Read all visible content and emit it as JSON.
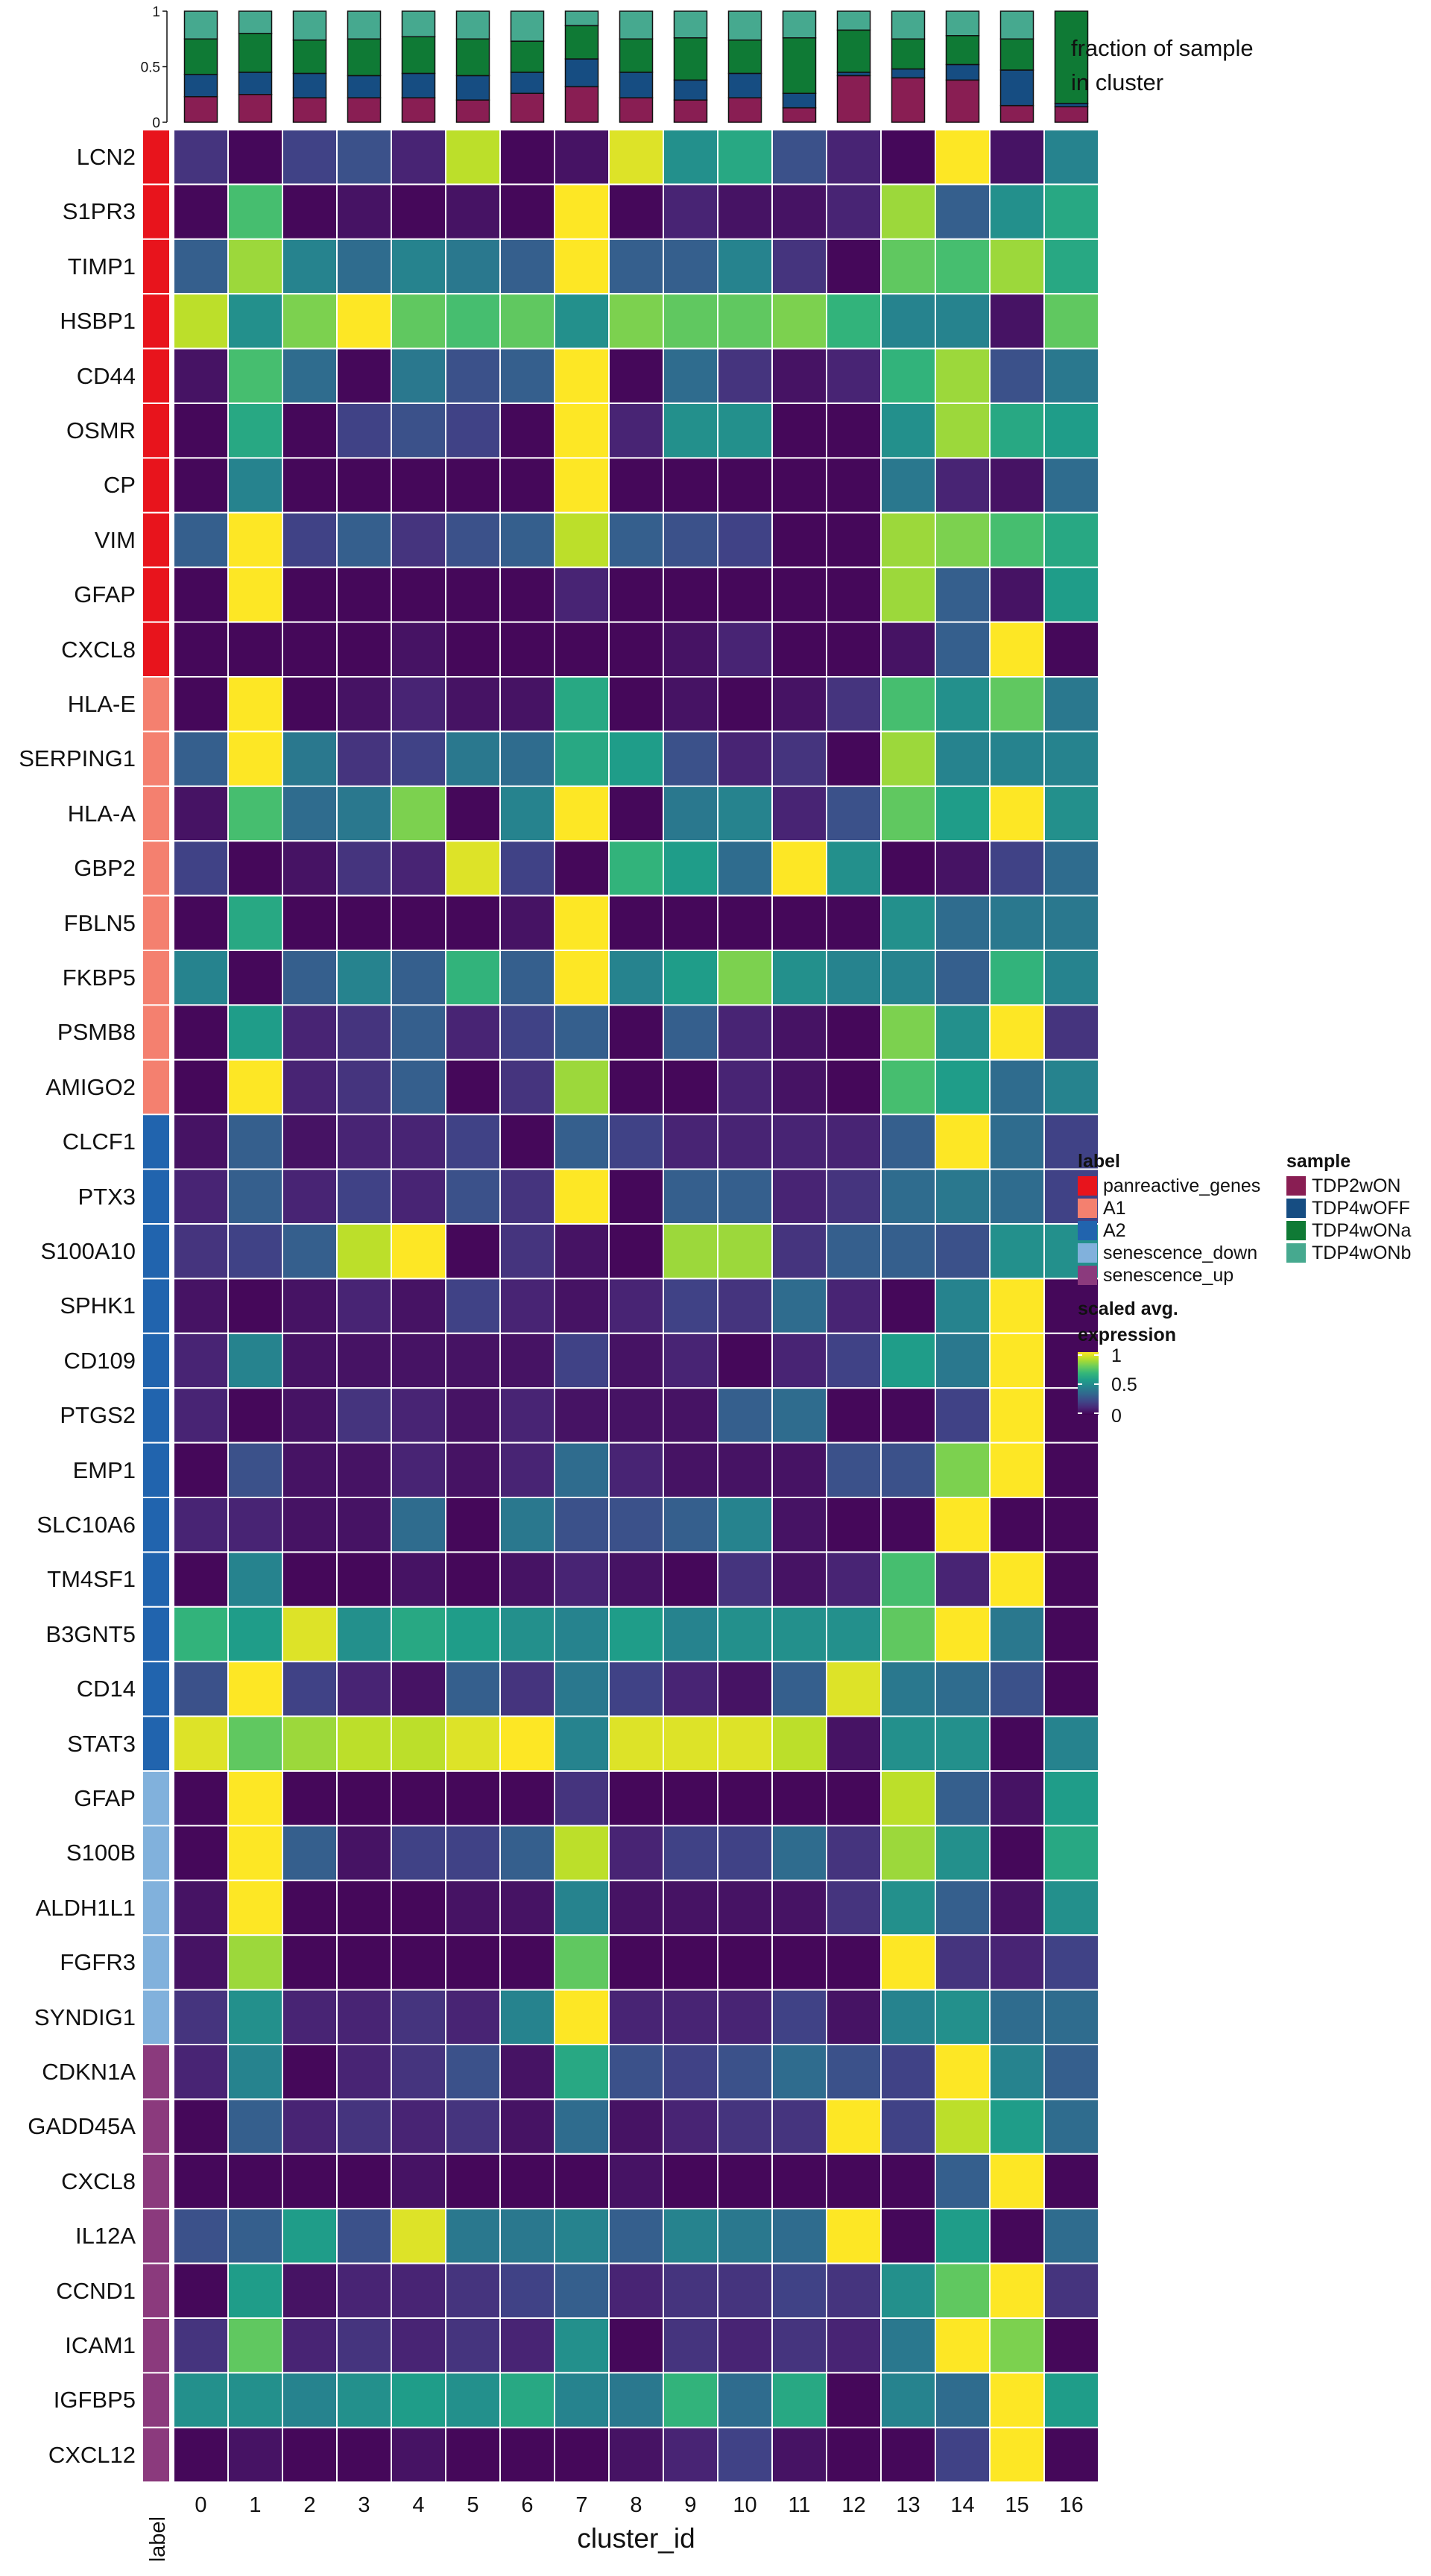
{
  "chart_data": {
    "type": "heatmap",
    "title": "",
    "xlabel": "cluster_id",
    "label_axis_title": "label",
    "clusters": [
      "0",
      "1",
      "2",
      "3",
      "4",
      "5",
      "6",
      "7",
      "8",
      "9",
      "10",
      "11",
      "12",
      "13",
      "14",
      "15",
      "16"
    ],
    "genes": [
      "LCN2",
      "S1PR3",
      "TIMP1",
      "HSBP1",
      "CD44",
      "OSMR",
      "CP",
      "VIM",
      "GFAP",
      "CXCL8",
      "HLA-E",
      "SERPING1",
      "HLA-A",
      "GBP2",
      "FBLN5",
      "FKBP5",
      "PSMB8",
      "AMIGO2",
      "CLCF1",
      "PTX3",
      "S100A10",
      "SPHK1",
      "CD109",
      "PTGS2",
      "EMP1",
      "SLC10A6",
      "TM4SF1",
      "B3GNT5",
      "CD14",
      "STAT3",
      "GFAP",
      "S100B",
      "ALDH1L1",
      "FGFR3",
      "SYNDIG1",
      "CDKN1A",
      "GADD45A",
      "CXCL8",
      "IL12A",
      "CCND1",
      "ICAM1",
      "IGFBP5",
      "CXCL12"
    ],
    "row_labels": [
      "panreactive_genes",
      "panreactive_genes",
      "panreactive_genes",
      "panreactive_genes",
      "panreactive_genes",
      "panreactive_genes",
      "panreactive_genes",
      "panreactive_genes",
      "panreactive_genes",
      "panreactive_genes",
      "A1",
      "A1",
      "A1",
      "A1",
      "A1",
      "A1",
      "A1",
      "A1",
      "A2",
      "A2",
      "A2",
      "A2",
      "A2",
      "A2",
      "A2",
      "A2",
      "A2",
      "A2",
      "A2",
      "A2",
      "senescence_down",
      "senescence_down",
      "senescence_down",
      "senescence_down",
      "senescence_down",
      "senescence_up",
      "senescence_up",
      "senescence_up",
      "senescence_up",
      "senescence_up",
      "senescence_up",
      "senescence_up",
      "senescence_up"
    ],
    "values": [
      [
        0.15,
        0.02,
        0.2,
        0.25,
        0.1,
        0.9,
        0.02,
        0.05,
        0.95,
        0.5,
        0.6,
        0.25,
        0.1,
        0.02,
        1.0,
        0.05,
        0.45
      ],
      [
        0.02,
        0.7,
        0.02,
        0.05,
        0.02,
        0.05,
        0.02,
        1.0,
        0.02,
        0.1,
        0.05,
        0.05,
        0.1,
        0.85,
        0.3,
        0.5,
        0.6
      ],
      [
        0.3,
        0.85,
        0.45,
        0.35,
        0.45,
        0.4,
        0.3,
        1.0,
        0.3,
        0.3,
        0.45,
        0.15,
        0.02,
        0.75,
        0.7,
        0.85,
        0.6
      ],
      [
        0.9,
        0.5,
        0.8,
        1.0,
        0.75,
        0.7,
        0.75,
        0.5,
        0.8,
        0.75,
        0.75,
        0.8,
        0.65,
        0.45,
        0.45,
        0.05,
        0.75
      ],
      [
        0.05,
        0.7,
        0.35,
        0.02,
        0.4,
        0.25,
        0.3,
        1.0,
        0.02,
        0.35,
        0.15,
        0.05,
        0.1,
        0.65,
        0.85,
        0.25,
        0.4
      ],
      [
        0.02,
        0.6,
        0.02,
        0.2,
        0.25,
        0.2,
        0.02,
        1.0,
        0.1,
        0.5,
        0.5,
        0.02,
        0.02,
        0.5,
        0.85,
        0.6,
        0.55
      ],
      [
        0.02,
        0.45,
        0.02,
        0.02,
        0.02,
        0.02,
        0.02,
        1.0,
        0.02,
        0.02,
        0.02,
        0.02,
        0.02,
        0.4,
        0.1,
        0.05,
        0.35
      ],
      [
        0.3,
        1.0,
        0.2,
        0.3,
        0.15,
        0.25,
        0.3,
        0.9,
        0.3,
        0.25,
        0.2,
        0.02,
        0.02,
        0.85,
        0.8,
        0.7,
        0.6
      ],
      [
        0.02,
        1.0,
        0.02,
        0.02,
        0.02,
        0.02,
        0.02,
        0.1,
        0.02,
        0.02,
        0.02,
        0.02,
        0.02,
        0.85,
        0.3,
        0.05,
        0.55
      ],
      [
        0.02,
        0.02,
        0.02,
        0.02,
        0.05,
        0.02,
        0.02,
        0.02,
        0.02,
        0.05,
        0.1,
        0.02,
        0.02,
        0.05,
        0.3,
        1.0,
        0.02
      ],
      [
        0.02,
        1.0,
        0.02,
        0.05,
        0.1,
        0.05,
        0.05,
        0.6,
        0.02,
        0.05,
        0.02,
        0.05,
        0.15,
        0.7,
        0.5,
        0.75,
        0.4
      ],
      [
        0.3,
        1.0,
        0.4,
        0.15,
        0.2,
        0.4,
        0.35,
        0.6,
        0.55,
        0.25,
        0.1,
        0.15,
        0.02,
        0.85,
        0.45,
        0.45,
        0.45
      ],
      [
        0.05,
        0.7,
        0.35,
        0.4,
        0.8,
        0.02,
        0.45,
        1.0,
        0.02,
        0.4,
        0.45,
        0.1,
        0.25,
        0.75,
        0.55,
        1.0,
        0.5
      ],
      [
        0.2,
        0.02,
        0.05,
        0.15,
        0.1,
        0.95,
        0.2,
        0.02,
        0.65,
        0.55,
        0.35,
        1.0,
        0.5,
        0.02,
        0.05,
        0.2,
        0.35
      ],
      [
        0.02,
        0.6,
        0.02,
        0.02,
        0.02,
        0.02,
        0.05,
        1.0,
        0.02,
        0.02,
        0.02,
        0.02,
        0.02,
        0.5,
        0.35,
        0.4,
        0.4
      ],
      [
        0.45,
        0.02,
        0.3,
        0.45,
        0.3,
        0.65,
        0.3,
        1.0,
        0.45,
        0.55,
        0.8,
        0.5,
        0.45,
        0.45,
        0.3,
        0.65,
        0.45
      ],
      [
        0.02,
        0.55,
        0.1,
        0.15,
        0.3,
        0.1,
        0.2,
        0.3,
        0.02,
        0.3,
        0.1,
        0.05,
        0.02,
        0.8,
        0.5,
        1.0,
        0.15
      ],
      [
        0.02,
        1.0,
        0.1,
        0.15,
        0.3,
        0.02,
        0.15,
        0.85,
        0.02,
        0.02,
        0.1,
        0.05,
        0.02,
        0.7,
        0.55,
        0.35,
        0.45
      ],
      [
        0.05,
        0.3,
        0.05,
        0.1,
        0.1,
        0.2,
        0.02,
        0.3,
        0.2,
        0.1,
        0.1,
        0.1,
        0.1,
        0.3,
        1.0,
        0.35,
        0.2
      ],
      [
        0.1,
        0.3,
        0.1,
        0.2,
        0.1,
        0.25,
        0.15,
        1.0,
        0.02,
        0.3,
        0.3,
        0.1,
        0.15,
        0.35,
        0.4,
        0.35,
        0.2
      ],
      [
        0.15,
        0.2,
        0.3,
        0.9,
        1.0,
        0.02,
        0.15,
        0.05,
        0.02,
        0.85,
        0.85,
        0.15,
        0.3,
        0.3,
        0.25,
        0.5,
        0.5
      ],
      [
        0.05,
        0.02,
        0.05,
        0.1,
        0.05,
        0.2,
        0.1,
        0.05,
        0.1,
        0.2,
        0.15,
        0.35,
        0.1,
        0.02,
        0.45,
        1.0,
        0.02
      ],
      [
        0.1,
        0.45,
        0.05,
        0.05,
        0.05,
        0.05,
        0.05,
        0.2,
        0.05,
        0.1,
        0.02,
        0.1,
        0.2,
        0.55,
        0.4,
        1.0,
        0.02
      ],
      [
        0.1,
        0.02,
        0.05,
        0.15,
        0.1,
        0.05,
        0.1,
        0.05,
        0.05,
        0.05,
        0.3,
        0.35,
        0.02,
        0.02,
        0.2,
        1.0,
        0.02
      ],
      [
        0.02,
        0.25,
        0.05,
        0.05,
        0.1,
        0.05,
        0.1,
        0.35,
        0.1,
        0.05,
        0.05,
        0.05,
        0.25,
        0.25,
        0.8,
        1.0,
        0.02
      ],
      [
        0.1,
        0.1,
        0.05,
        0.05,
        0.35,
        0.02,
        0.4,
        0.25,
        0.25,
        0.3,
        0.45,
        0.05,
        0.02,
        0.02,
        1.0,
        0.02,
        0.02
      ],
      [
        0.02,
        0.45,
        0.02,
        0.02,
        0.05,
        0.02,
        0.05,
        0.1,
        0.05,
        0.02,
        0.15,
        0.05,
        0.1,
        0.7,
        0.1,
        1.0,
        0.02
      ],
      [
        0.65,
        0.55,
        0.95,
        0.5,
        0.6,
        0.55,
        0.5,
        0.45,
        0.55,
        0.45,
        0.5,
        0.5,
        0.5,
        0.75,
        1.0,
        0.4,
        0.02
      ],
      [
        0.25,
        1.0,
        0.2,
        0.1,
        0.05,
        0.3,
        0.15,
        0.4,
        0.2,
        0.1,
        0.05,
        0.3,
        0.95,
        0.4,
        0.35,
        0.25,
        0.02
      ],
      [
        0.95,
        0.75,
        0.85,
        0.9,
        0.9,
        0.95,
        1.0,
        0.45,
        0.95,
        0.95,
        0.95,
        0.9,
        0.05,
        0.5,
        0.5,
        0.02,
        0.45
      ],
      [
        0.02,
        1.0,
        0.02,
        0.02,
        0.02,
        0.02,
        0.02,
        0.15,
        0.02,
        0.02,
        0.02,
        0.02,
        0.02,
        0.9,
        0.3,
        0.05,
        0.55
      ],
      [
        0.02,
        1.0,
        0.3,
        0.05,
        0.2,
        0.2,
        0.3,
        0.9,
        0.1,
        0.2,
        0.2,
        0.35,
        0.15,
        0.85,
        0.5,
        0.02,
        0.6
      ],
      [
        0.05,
        1.0,
        0.02,
        0.02,
        0.02,
        0.05,
        0.05,
        0.45,
        0.05,
        0.05,
        0.05,
        0.05,
        0.15,
        0.5,
        0.3,
        0.05,
        0.5
      ],
      [
        0.05,
        0.85,
        0.02,
        0.02,
        0.02,
        0.02,
        0.02,
        0.75,
        0.02,
        0.02,
        0.02,
        0.02,
        0.02,
        1.0,
        0.15,
        0.1,
        0.2
      ],
      [
        0.15,
        0.5,
        0.1,
        0.1,
        0.15,
        0.1,
        0.45,
        1.0,
        0.1,
        0.1,
        0.1,
        0.2,
        0.05,
        0.45,
        0.5,
        0.35,
        0.35
      ],
      [
        0.1,
        0.45,
        0.02,
        0.1,
        0.15,
        0.25,
        0.05,
        0.6,
        0.25,
        0.2,
        0.25,
        0.35,
        0.25,
        0.2,
        1.0,
        0.45,
        0.3
      ],
      [
        0.02,
        0.3,
        0.1,
        0.15,
        0.1,
        0.15,
        0.05,
        0.35,
        0.05,
        0.1,
        0.15,
        0.15,
        1.0,
        0.2,
        0.9,
        0.55,
        0.35
      ],
      [
        0.02,
        0.02,
        0.02,
        0.02,
        0.05,
        0.02,
        0.02,
        0.02,
        0.05,
        0.02,
        0.02,
        0.02,
        0.02,
        0.02,
        0.3,
        1.0,
        0.02
      ],
      [
        0.25,
        0.3,
        0.55,
        0.25,
        0.95,
        0.4,
        0.4,
        0.45,
        0.3,
        0.45,
        0.4,
        0.35,
        1.0,
        0.02,
        0.55,
        0.02,
        0.35
      ],
      [
        0.02,
        0.55,
        0.05,
        0.1,
        0.1,
        0.15,
        0.2,
        0.3,
        0.1,
        0.15,
        0.15,
        0.2,
        0.15,
        0.5,
        0.75,
        1.0,
        0.15
      ],
      [
        0.15,
        0.75,
        0.1,
        0.15,
        0.1,
        0.15,
        0.1,
        0.5,
        0.02,
        0.15,
        0.1,
        0.15,
        0.1,
        0.4,
        1.0,
        0.8,
        0.02
      ],
      [
        0.5,
        0.5,
        0.45,
        0.5,
        0.55,
        0.5,
        0.6,
        0.45,
        0.4,
        0.65,
        0.35,
        0.6,
        0.02,
        0.45,
        0.35,
        1.0,
        0.55
      ],
      [
        0.02,
        0.05,
        0.02,
        0.02,
        0.05,
        0.02,
        0.02,
        0.02,
        0.05,
        0.1,
        0.2,
        0.05,
        0.02,
        0.02,
        0.2,
        1.0,
        0.02
      ]
    ],
    "label_colors": {
      "panreactive_genes": "#e8141c",
      "A1": "#f4806f",
      "A2": "#2164ae",
      "senescence_down": "#81b1dc",
      "senescence_up": "#8b3a7d"
    },
    "samples": [
      "TDP2wON",
      "TDP4wOFF",
      "TDP4wONa",
      "TDP4wONb"
    ],
    "sample_colors": [
      "#891e53",
      "#164d82",
      "#0f7a35",
      "#46a98f"
    ],
    "sample_fractions": [
      [
        0.23,
        0.2,
        0.32,
        0.25
      ],
      [
        0.25,
        0.2,
        0.35,
        0.2
      ],
      [
        0.22,
        0.22,
        0.3,
        0.26
      ],
      [
        0.22,
        0.2,
        0.33,
        0.25
      ],
      [
        0.22,
        0.22,
        0.33,
        0.23
      ],
      [
        0.2,
        0.22,
        0.33,
        0.25
      ],
      [
        0.26,
        0.19,
        0.28,
        0.27
      ],
      [
        0.32,
        0.25,
        0.3,
        0.13
      ],
      [
        0.22,
        0.23,
        0.3,
        0.25
      ],
      [
        0.2,
        0.18,
        0.38,
        0.24
      ],
      [
        0.22,
        0.22,
        0.3,
        0.26
      ],
      [
        0.13,
        0.13,
        0.5,
        0.24
      ],
      [
        0.42,
        0.03,
        0.38,
        0.17
      ],
      [
        0.4,
        0.08,
        0.27,
        0.25
      ],
      [
        0.38,
        0.14,
        0.26,
        0.22
      ],
      [
        0.15,
        0.32,
        0.28,
        0.25
      ],
      [
        0.14,
        0.03,
        0.83,
        0.0
      ]
    ],
    "top_yticks": [
      "0",
      "0.5",
      "1"
    ],
    "top_ylim": [
      0,
      1
    ],
    "top_annotation_title": [
      "fraction of sample",
      "in cluster"
    ],
    "legend_label_title": "label",
    "legend_sample_title": "sample",
    "legend_scale_title": [
      "scaled avg.",
      "expression"
    ],
    "scale_ticks": [
      "1",
      "0.5",
      "0"
    ],
    "color_scale": "viridis",
    "color_range": [
      0,
      1
    ]
  }
}
